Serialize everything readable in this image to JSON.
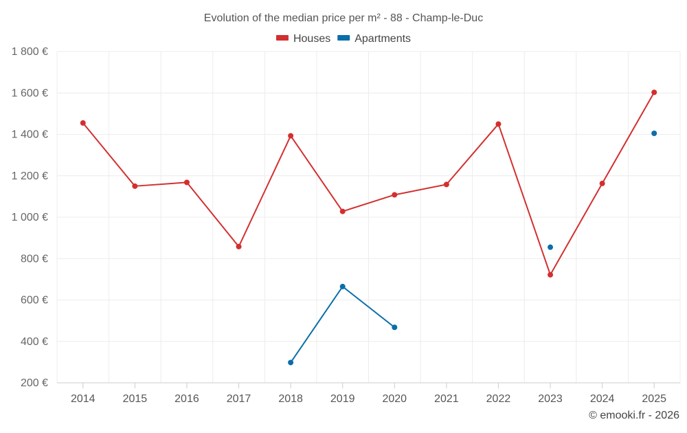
{
  "chart_data": {
    "type": "line",
    "title": "Evolution of the median price per m² - 88 - Champ-le-Duc",
    "categories": [
      "2014",
      "2015",
      "2016",
      "2017",
      "2018",
      "2019",
      "2020",
      "2021",
      "2022",
      "2023",
      "2024",
      "2025"
    ],
    "y_ticks": [
      "200 €",
      "400 €",
      "600 €",
      "800 €",
      "1 000 €",
      "1 200 €",
      "1 400 €",
      "1 600 €",
      "1 800 €"
    ],
    "ylim": [
      200,
      1800
    ],
    "series": [
      {
        "name": "Houses",
        "color": "#d32f2f",
        "values": [
          1455,
          1150,
          1168,
          858,
          1393,
          1028,
          1108,
          1158,
          1450,
          722,
          1163,
          1603
        ]
      },
      {
        "name": "Apartments",
        "color": "#0a6ea8",
        "values": [
          null,
          null,
          null,
          null,
          298,
          665,
          468,
          null,
          null,
          855,
          null,
          1405
        ]
      }
    ],
    "grid": true,
    "legend_position": "top-center"
  },
  "credit": "© emooki.fr - 2026"
}
